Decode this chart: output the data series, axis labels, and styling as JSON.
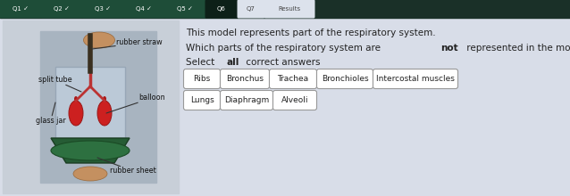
{
  "bg_color": "#dce2ec",
  "tab_bar_color": "#1a3028",
  "tabs_green": [
    "Q1",
    "Q2",
    "Q3",
    "Q4",
    "Q5"
  ],
  "tab_q6": "Q6",
  "tab_q7": "Q7",
  "tab_results": "Results",
  "title_line1": "This model represents part of the respiratory system.",
  "title_line2_pre": "Which parts of the respiratory system are ",
  "title_line2_bold": "not",
  "title_line2_post": " represented in the model?",
  "instr_pre": "Select ",
  "instr_bold": "all",
  "instr_post": " correct answers",
  "buttons_row1": [
    "Ribs",
    "Bronchus",
    "Trachea",
    "Bronchioles",
    "Intercostal muscles"
  ],
  "buttons_row2": [
    "Lungs",
    "Diaphragm",
    "Alveoli"
  ],
  "button_bg": "#ffffff",
  "button_border": "#999999",
  "text_color": "#222222",
  "panel_bg": "#d4dae6",
  "tab_green_bg": "#1e4d38",
  "tab_green_text": "#ffffff",
  "tab_q6_bg": "#0d2018",
  "tab_q6_text": "#ffffff",
  "tab_plain_bg": "#dce2ec",
  "tab_plain_text": "#444444",
  "img_bg": "#c8cfd8",
  "label_line_color": "#555555",
  "content_bg": "#d8dde8"
}
